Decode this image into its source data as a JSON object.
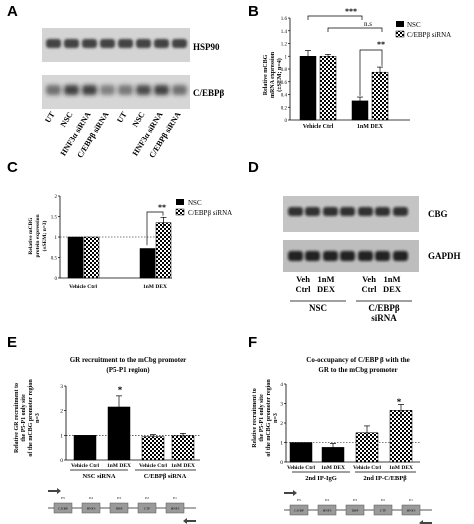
{
  "panels": {
    "a": {
      "letter": "A",
      "blot_labels": [
        "HSP90",
        "C/EBPβ"
      ],
      "lanes": [
        "UT",
        "NSC",
        "HNF3α siRNA",
        "C/EBPβ siRNA",
        "UT",
        "NSC",
        "HNF3α siRNA",
        "C/EBPβ siRNA"
      ]
    },
    "b": {
      "letter": "B",
      "ylabel": [
        "Relative mCBG",
        "mRNA expression",
        "(±SEM; n=4)"
      ],
      "sig_upper": "***",
      "sig_ns": "n.s",
      "sig_inner": "**",
      "legend": [
        "NSC",
        "C/EBPβ siRNA"
      ]
    },
    "c": {
      "letter": "C",
      "ylabel": [
        "Relative mCBG",
        "protein expression",
        "(±SEM; n=3)"
      ],
      "sig_inner": "**",
      "legend": [
        "NSC",
        "C/EBPβ siRNA"
      ]
    },
    "d": {
      "letter": "D",
      "blot_labels": [
        "CBG",
        "GAPDH"
      ],
      "lanes": [
        "Veh",
        "Ctrl",
        "1nM",
        "DEX",
        "Veh",
        "Ctrl",
        "1nM",
        "DEX"
      ],
      "groups": [
        "NSC",
        "C/EBPβ",
        "siRNA"
      ]
    },
    "e": {
      "letter": "E",
      "title": [
        "GR recruitment to the mCbg promoter",
        "(P5-P1 region)"
      ],
      "ylabel": [
        "Relative GR recruitment to",
        "the P5-P1 only site",
        "of the mCBG promoter region",
        "n=3"
      ],
      "sig": "*",
      "groups": [
        "NSC siRNA",
        "C/EBPβ siRNA"
      ]
    },
    "f": {
      "letter": "F",
      "title": [
        "Co-occupancy of C/EBP β with the",
        "GR to the mCbg promoter"
      ],
      "ylabel": [
        "Relative recruitment to",
        "the P5-P1 only site",
        "of the mCBG promoter region",
        "n=3"
      ],
      "sig": "*",
      "groups": [
        "2nd IP-IgG",
        "2nd IP-C/EBPβ"
      ]
    }
  },
  "chart_data": [
    {
      "panel": "B",
      "type": "bar",
      "categories": [
        "Vehicle Ctrl",
        "1nM DEX"
      ],
      "series": [
        {
          "name": "NSC",
          "values": [
            1.0,
            0.3
          ],
          "errors": [
            0.09,
            0.06
          ],
          "pattern": "solid"
        },
        {
          "name": "C/EBPβ siRNA",
          "values": [
            1.0,
            0.75
          ],
          "errors": [
            0.03,
            0.08
          ],
          "pattern": "checker"
        }
      ],
      "ylim": [
        0,
        1.6
      ],
      "yticks": [
        0,
        0.2,
        0.4,
        0.6,
        0.8,
        1,
        1.2,
        1.4,
        1.6
      ]
    },
    {
      "panel": "C",
      "type": "bar",
      "categories": [
        "Vehicle Ctrl",
        "1nM DEX"
      ],
      "series": [
        {
          "name": "NSC",
          "values": [
            1.0,
            0.72
          ],
          "errors": [
            0,
            0
          ],
          "pattern": "solid"
        },
        {
          "name": "C/EBPβ siRNA",
          "values": [
            1.0,
            1.35
          ],
          "errors": [
            0,
            0.13
          ],
          "pattern": "checker"
        }
      ],
      "ylim": [
        0,
        2
      ],
      "yticks": [
        0,
        0.5,
        1,
        1.5,
        2
      ]
    },
    {
      "panel": "E",
      "type": "bar",
      "categories": [
        "Vehicle Ctrl",
        "1nM DEX",
        "Vehicle Ctrl",
        "1nM DEX"
      ],
      "values": [
        1.0,
        2.15,
        0.95,
        0.98
      ],
      "errors": [
        0,
        0.45,
        0.08,
        0.1
      ],
      "patterns": [
        "solid",
        "solid",
        "checker",
        "checker"
      ],
      "ylim": [
        0,
        3
      ],
      "yticks": [
        0,
        1,
        2,
        3
      ]
    },
    {
      "panel": "F",
      "type": "bar",
      "categories": [
        "Vehicle Ctrl",
        "1nM DEX",
        "Vehicle Ctrl",
        "1nM DEX"
      ],
      "values": [
        1.0,
        0.75,
        1.5,
        2.65
      ],
      "errors": [
        0,
        0.2,
        0.35,
        0.3
      ],
      "patterns": [
        "solid",
        "solid",
        "checker",
        "checker"
      ],
      "ylim": [
        0,
        4
      ],
      "yticks": [
        0,
        1,
        2,
        3,
        4
      ]
    }
  ],
  "diagram": {
    "promoter_labels": [
      "P5",
      "P4",
      "P3",
      "P2",
      "P1"
    ],
    "boxes": [
      "C/EBP",
      "HNF3",
      "DBP",
      "CTF",
      "HNF3"
    ]
  }
}
